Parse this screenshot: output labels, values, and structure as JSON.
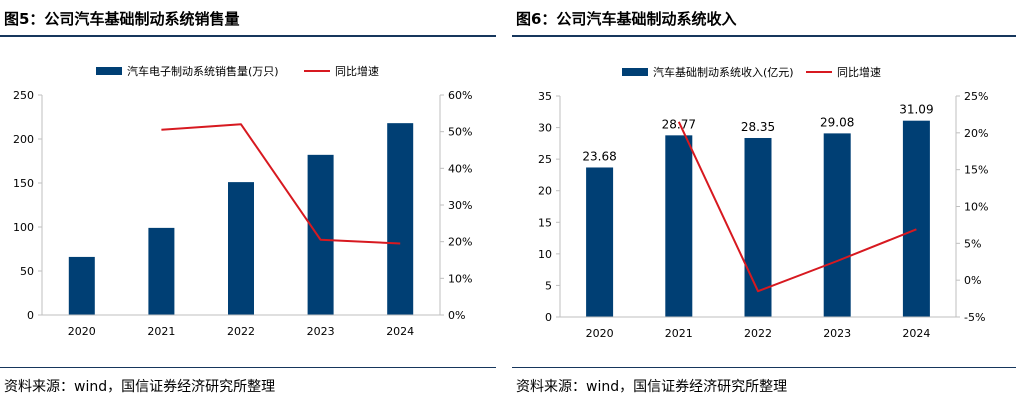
{
  "panels": [
    {
      "title": "图5：公司汽车基础制动系统销售量",
      "source": "资料来源：wind，国信证券经济研究所整理"
    },
    {
      "title": "图6：公司汽车基础制动系统收入",
      "source": "资料来源：wind，国信证券经济研究所整理"
    }
  ],
  "chart_data": [
    {
      "type": "bar",
      "categories": [
        "2020",
        "2021",
        "2022",
        "2023",
        "2024"
      ],
      "series": [
        {
          "name": "汽车电子制动系统销售量(万只)",
          "type": "bar",
          "axis": "left",
          "values": [
            66,
            99,
            151,
            182,
            218
          ]
        },
        {
          "name": "同比增速",
          "type": "line",
          "axis": "right",
          "values": [
            null,
            0.505,
            0.52,
            0.205,
            0.195
          ]
        }
      ],
      "ylim": [
        0,
        250
      ],
      "yticks": [
        "0",
        "50",
        "100",
        "150",
        "200",
        "250"
      ],
      "y2lim": [
        0,
        0.6
      ],
      "y2ticks": [
        "0%",
        "10%",
        "20%",
        "30%",
        "40%",
        "50%",
        "60%"
      ],
      "legend": "top-center",
      "grid": false,
      "colors": {
        "bar": "#003F74",
        "line": "#D71920",
        "axis": "#BFBFBF"
      }
    },
    {
      "type": "bar",
      "categories": [
        "2020",
        "2021",
        "2022",
        "2023",
        "2024"
      ],
      "series": [
        {
          "name": "汽车基础制动系统收入(亿元)",
          "type": "bar",
          "axis": "left",
          "values": [
            23.68,
            28.77,
            28.35,
            29.08,
            31.09
          ],
          "labels": [
            "23.68",
            "28.77",
            "28.35",
            "29.08",
            "31.09"
          ]
        },
        {
          "name": "同比增速",
          "type": "line",
          "axis": "right",
          "values": [
            null,
            0.215,
            -0.015,
            0.026,
            0.069
          ]
        }
      ],
      "ylim": [
        0,
        35
      ],
      "yticks": [
        "0",
        "5",
        "10",
        "15",
        "20",
        "25",
        "30",
        "35"
      ],
      "y2lim": [
        -0.05,
        0.25
      ],
      "y2ticks": [
        "-5%",
        "0%",
        "5%",
        "10%",
        "15%",
        "20%",
        "25%"
      ],
      "legend": "top-center",
      "grid": false,
      "colors": {
        "bar": "#003F74",
        "line": "#D71920",
        "axis": "#BFBFBF"
      }
    }
  ]
}
